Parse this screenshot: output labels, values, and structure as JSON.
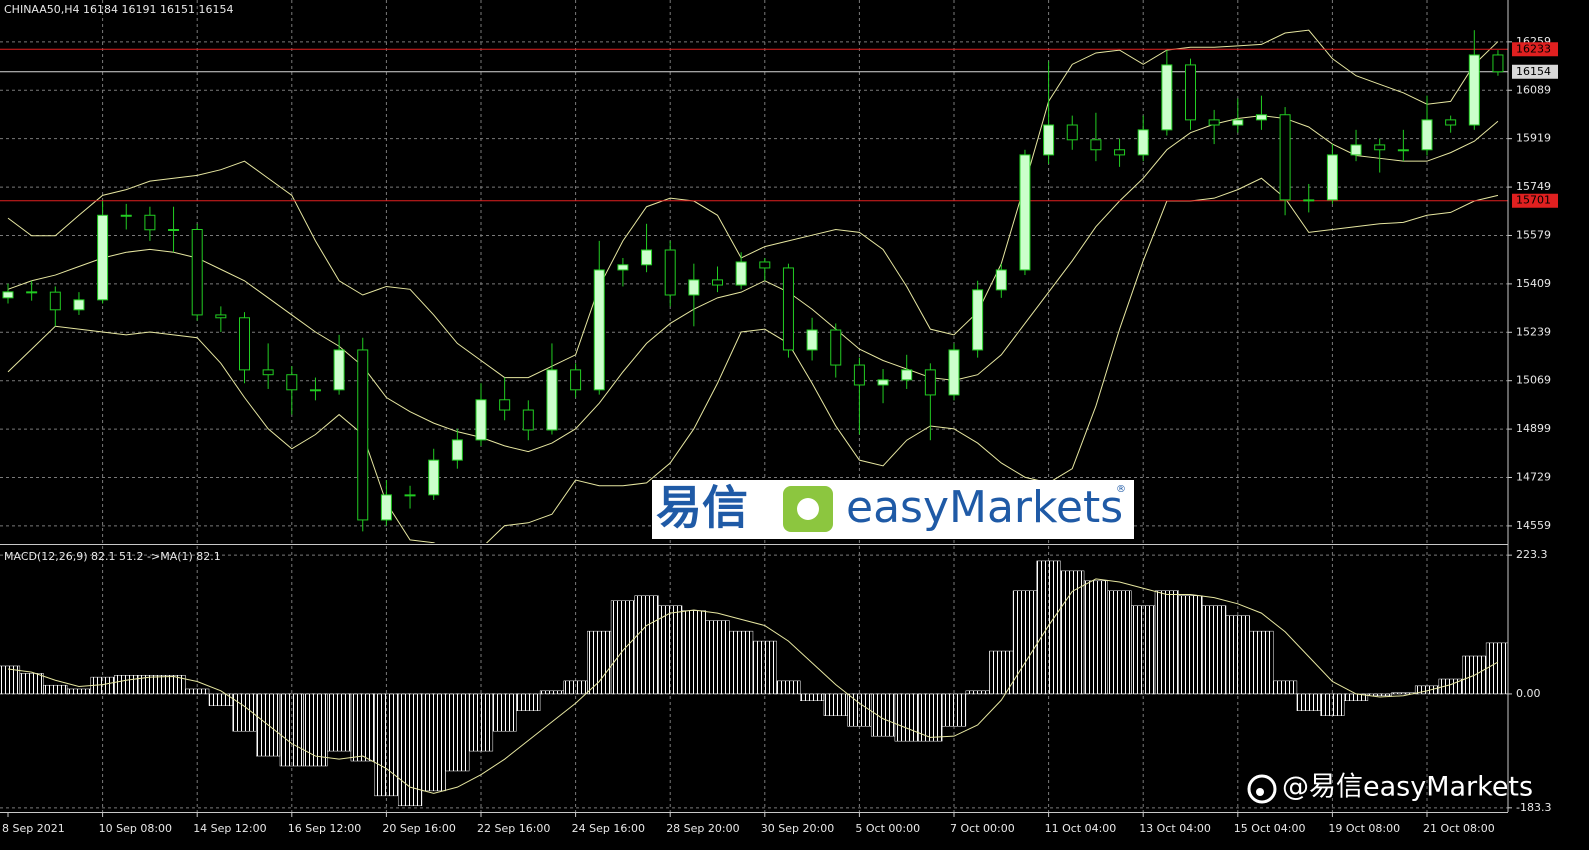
{
  "chart_data": [
    {
      "type": "candlestick",
      "title": "CHINAA50,H4  16184 16191 16151 16154",
      "categories": [
        "8 Sep 2021",
        null,
        null,
        null,
        "10 Sep 08:00",
        null,
        null,
        null,
        "14 Sep 12:00",
        null,
        null,
        null,
        "16 Sep 12:00",
        null,
        null,
        null,
        "20 Sep 16:00",
        null,
        null,
        null,
        "22 Sep 16:00",
        null,
        null,
        null,
        "24 Sep 16:00",
        null,
        null,
        null,
        "28 Sep 20:00",
        null,
        null,
        null,
        "30 Sep 20:00",
        null,
        null,
        null,
        "5 Oct 00:00",
        null,
        null,
        null,
        "7 Oct 00:00",
        null,
        null,
        null,
        "11 Oct 04:00",
        null,
        null,
        null,
        "13 Oct 04:00",
        null,
        null,
        null,
        "15 Oct 04:00",
        null,
        null,
        null,
        "19 Oct 08:00",
        null,
        null,
        null,
        "21 Oct 08:00",
        null,
        null,
        null
      ],
      "open": [
        15360,
        15381,
        15380,
        15318,
        15353,
        15650,
        15650,
        15599,
        15600,
        15300,
        15290,
        15107,
        15090,
        15037,
        15037,
        15177,
        14580,
        14668,
        14668,
        14790,
        14861,
        15002,
        14966,
        14896,
        15107,
        15037,
        15458,
        15476,
        15528,
        15370,
        15423,
        15405,
        15486,
        15465,
        15177,
        15247,
        15124,
        15054,
        15072,
        15107,
        15019,
        15177,
        15388,
        15458,
        15862,
        15967,
        15915,
        15880,
        15862,
        15950,
        16178,
        15985,
        15967,
        15985,
        16003,
        15704,
        15704,
        15862,
        15897,
        15880,
        15880,
        15985,
        15967,
        16213
      ],
      "high": [
        15410,
        15420,
        15400,
        15380,
        15700,
        15690,
        15680,
        15680,
        15620,
        15330,
        15310,
        15200,
        15120,
        15080,
        15230,
        15220,
        14720,
        14700,
        14830,
        14900,
        15060,
        15080,
        15000,
        15200,
        15130,
        15560,
        15500,
        15620,
        15560,
        15480,
        15470,
        15520,
        15500,
        15480,
        15290,
        15270,
        15150,
        15110,
        15160,
        15130,
        15200,
        15420,
        15480,
        15880,
        16190,
        16000,
        16010,
        15920,
        16000,
        16230,
        16200,
        16020,
        16060,
        16070,
        16030,
        15760,
        15900,
        15950,
        15920,
        15950,
        16070,
        16000,
        16300,
        16230
      ],
      "low": [
        15340,
        15350,
        15260,
        15300,
        15340,
        15600,
        15560,
        15520,
        15280,
        15240,
        15060,
        15040,
        14950,
        15000,
        15020,
        14540,
        14560,
        14620,
        14650,
        14760,
        14840,
        14930,
        14860,
        14880,
        15010,
        15020,
        15400,
        15450,
        15330,
        15260,
        15380,
        15390,
        15420,
        15150,
        15140,
        15080,
        14880,
        14990,
        15040,
        14860,
        15000,
        15150,
        15360,
        15440,
        15830,
        15880,
        15840,
        15820,
        15840,
        15930,
        15950,
        15900,
        15940,
        15950,
        15650,
        15660,
        15690,
        15840,
        15800,
        15840,
        15860,
        15940,
        15950,
        16140
      ],
      "close": [
        15381,
        15380,
        15318,
        15353,
        15650,
        15650,
        15599,
        15600,
        15300,
        15290,
        15107,
        15090,
        15037,
        15037,
        15177,
        14580,
        14668,
        14668,
        14790,
        14861,
        15002,
        14966,
        14896,
        15107,
        15037,
        15458,
        15476,
        15528,
        15370,
        15423,
        15405,
        15486,
        15465,
        15177,
        15247,
        15124,
        15054,
        15072,
        15107,
        15019,
        15177,
        15388,
        15458,
        15862,
        15967,
        15915,
        15880,
        15862,
        15950,
        16178,
        15985,
        15967,
        15985,
        16003,
        15704,
        15704,
        15862,
        15897,
        15880,
        15880,
        15985,
        15967,
        16213,
        16154
      ],
      "up_color": "#ccffcc",
      "down_color": "#000000",
      "wick_color": "#22cc22",
      "bands": {
        "color": "#e6e6a0",
        "upper": [
          15640,
          15578,
          15578,
          15650,
          15720,
          15740,
          15770,
          15780,
          15790,
          15810,
          15840,
          15780,
          15720,
          15560,
          15420,
          15370,
          15400,
          15390,
          15300,
          15200,
          15140,
          15080,
          15080,
          15120,
          15160,
          15400,
          15560,
          15680,
          15710,
          15700,
          15650,
          15500,
          15540,
          15560,
          15580,
          15600,
          15590,
          15530,
          15400,
          15250,
          15230,
          15310,
          15480,
          15760,
          16050,
          16180,
          16220,
          16230,
          16180,
          16230,
          16240,
          16240,
          16245,
          16250,
          16290,
          16300,
          16200,
          16140,
          16110,
          16080,
          16040,
          16050,
          16180,
          16260
        ],
        "middle": [
          15390,
          15420,
          15440,
          15470,
          15500,
          15520,
          15530,
          15520,
          15500,
          15460,
          15420,
          15360,
          15300,
          15240,
          15190,
          15120,
          15010,
          14960,
          14920,
          14890,
          14870,
          14840,
          14820,
          14850,
          14900,
          14990,
          15100,
          15200,
          15270,
          15320,
          15360,
          15380,
          15420,
          15380,
          15320,
          15250,
          15180,
          15140,
          15110,
          15080,
          15070,
          15090,
          15160,
          15270,
          15380,
          15490,
          15610,
          15700,
          15780,
          15880,
          15940,
          15970,
          15990,
          16000,
          15990,
          15960,
          15900,
          15860,
          15850,
          15840,
          15840,
          15870,
          15910,
          15980
        ],
        "lower": [
          15100,
          15180,
          15260,
          15250,
          15240,
          15230,
          15240,
          15230,
          15220,
          15130,
          15010,
          14900,
          14830,
          14880,
          14950,
          14880,
          14640,
          14510,
          14500,
          14460,
          14480,
          14560,
          14570,
          14600,
          14720,
          14700,
          14700,
          14710,
          14780,
          14900,
          15060,
          15240,
          15250,
          15200,
          15060,
          14910,
          14790,
          14770,
          14860,
          14910,
          14900,
          14850,
          14780,
          14730,
          14710,
          14760,
          14980,
          15250,
          15490,
          15700,
          15700,
          15710,
          15740,
          15780,
          15710,
          15590,
          15600,
          15610,
          15620,
          15625,
          15650,
          15660,
          15700,
          15720
        ]
      },
      "levels": [
        {
          "value": 16233,
          "color": "#e02020",
          "text_color": "#000000"
        },
        {
          "value": 16154,
          "color": "#d8d8d8",
          "text_color": "#000000"
        },
        {
          "value": 15701,
          "color": "#e02020",
          "text_color": "#000000"
        }
      ],
      "ylim": [
        14499,
        16406
      ],
      "yticks": [
        16259,
        16089,
        15919,
        15749,
        15579,
        15409,
        15239,
        15069,
        14899,
        14729,
        14559
      ],
      "grid": true
    },
    {
      "type": "macd",
      "title": "MACD(12,26,9) 82.1 51.2  ->MA(1) 82.1",
      "values": [
        45,
        33,
        14,
        8,
        27,
        30,
        30,
        30,
        8,
        -19,
        -60,
        -100,
        -116,
        -116,
        -92,
        -108,
        -164,
        -180,
        -156,
        -124,
        -92,
        -60,
        -27,
        5,
        21,
        101,
        150,
        158,
        142,
        134,
        118,
        101,
        85,
        21,
        -11,
        -35,
        -52,
        -68,
        -76,
        -76,
        -52,
        5,
        69,
        166,
        214,
        198,
        182,
        166,
        142,
        166,
        158,
        142,
        126,
        101,
        21,
        -27,
        -35,
        -11,
        -3,
        2,
        13,
        24,
        61,
        82.1
      ],
      "signal": [
        40,
        35,
        22,
        12,
        15,
        22,
        27,
        28,
        20,
        5,
        -20,
        -50,
        -80,
        -100,
        -105,
        -100,
        -120,
        -150,
        -160,
        -150,
        -130,
        -105,
        -75,
        -45,
        -15,
        20,
        70,
        110,
        130,
        135,
        130,
        120,
        110,
        85,
        50,
        15,
        -15,
        -40,
        -55,
        -70,
        -68,
        -50,
        -10,
        50,
        110,
        165,
        185,
        180,
        170,
        160,
        160,
        155,
        145,
        130,
        100,
        60,
        20,
        0,
        -5,
        -3,
        5,
        15,
        30,
        51.2
      ],
      "color": "#ffffff",
      "signal_color": "#e6e6a0",
      "ylim": [
        -190,
        238
      ],
      "yticks": [
        223.3,
        {
          "value": 0,
          "label": "0.00"
        },
        -183.3
      ],
      "grid": true
    }
  ],
  "watermark": {
    "logo_cn": "易信",
    "logo_en": "easyMarkets",
    "registered": "®",
    "handle": "@易信easyMarkets"
  }
}
